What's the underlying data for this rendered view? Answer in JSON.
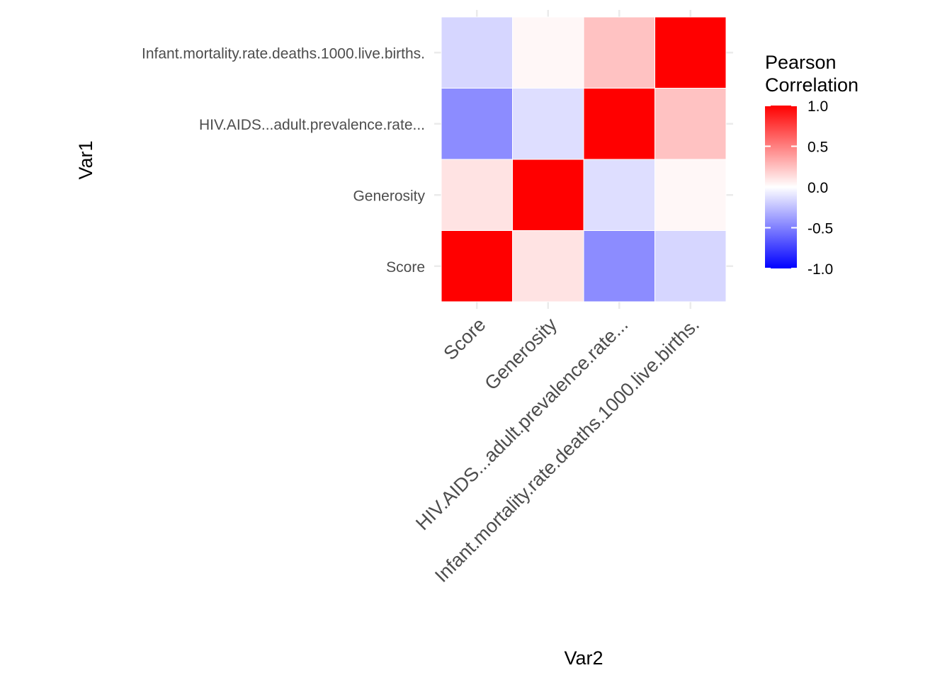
{
  "chart_data": {
    "type": "heatmap",
    "title": "",
    "xlabel": "Var2",
    "ylabel": "Var1",
    "x_categories": [
      "Score",
      "Generosity",
      "HIV.AIDS...adult.prevalence.rate...",
      "Infant.mortality.rate.deaths.1000.live.births."
    ],
    "y_categories": [
      "Score",
      "Generosity",
      "HIV.AIDS...adult.prevalence.rate...",
      "Infant.mortality.rate.deaths.1000.live.births."
    ],
    "values": [
      [
        1.0,
        0.11,
        -0.45,
        -0.16
      ],
      [
        0.11,
        1.0,
        -0.13,
        0.03
      ],
      [
        -0.45,
        -0.13,
        1.0,
        0.24
      ],
      [
        -0.16,
        0.03,
        0.24,
        1.0
      ]
    ],
    "color_scale": {
      "low": "#0000ff",
      "mid": "#ffffff",
      "high": "#ff0000",
      "limits": [
        -1,
        1
      ],
      "midpoint": 0
    },
    "legend": {
      "title_lines": [
        "Pearson",
        "Correlation"
      ],
      "breaks": [
        1.0,
        0.5,
        0.0,
        -0.5,
        -1.0
      ],
      "labels": [
        "1.0",
        "0.5",
        "0.0",
        "-0.5",
        "-1.0"
      ],
      "position": "right"
    },
    "grid": true
  }
}
